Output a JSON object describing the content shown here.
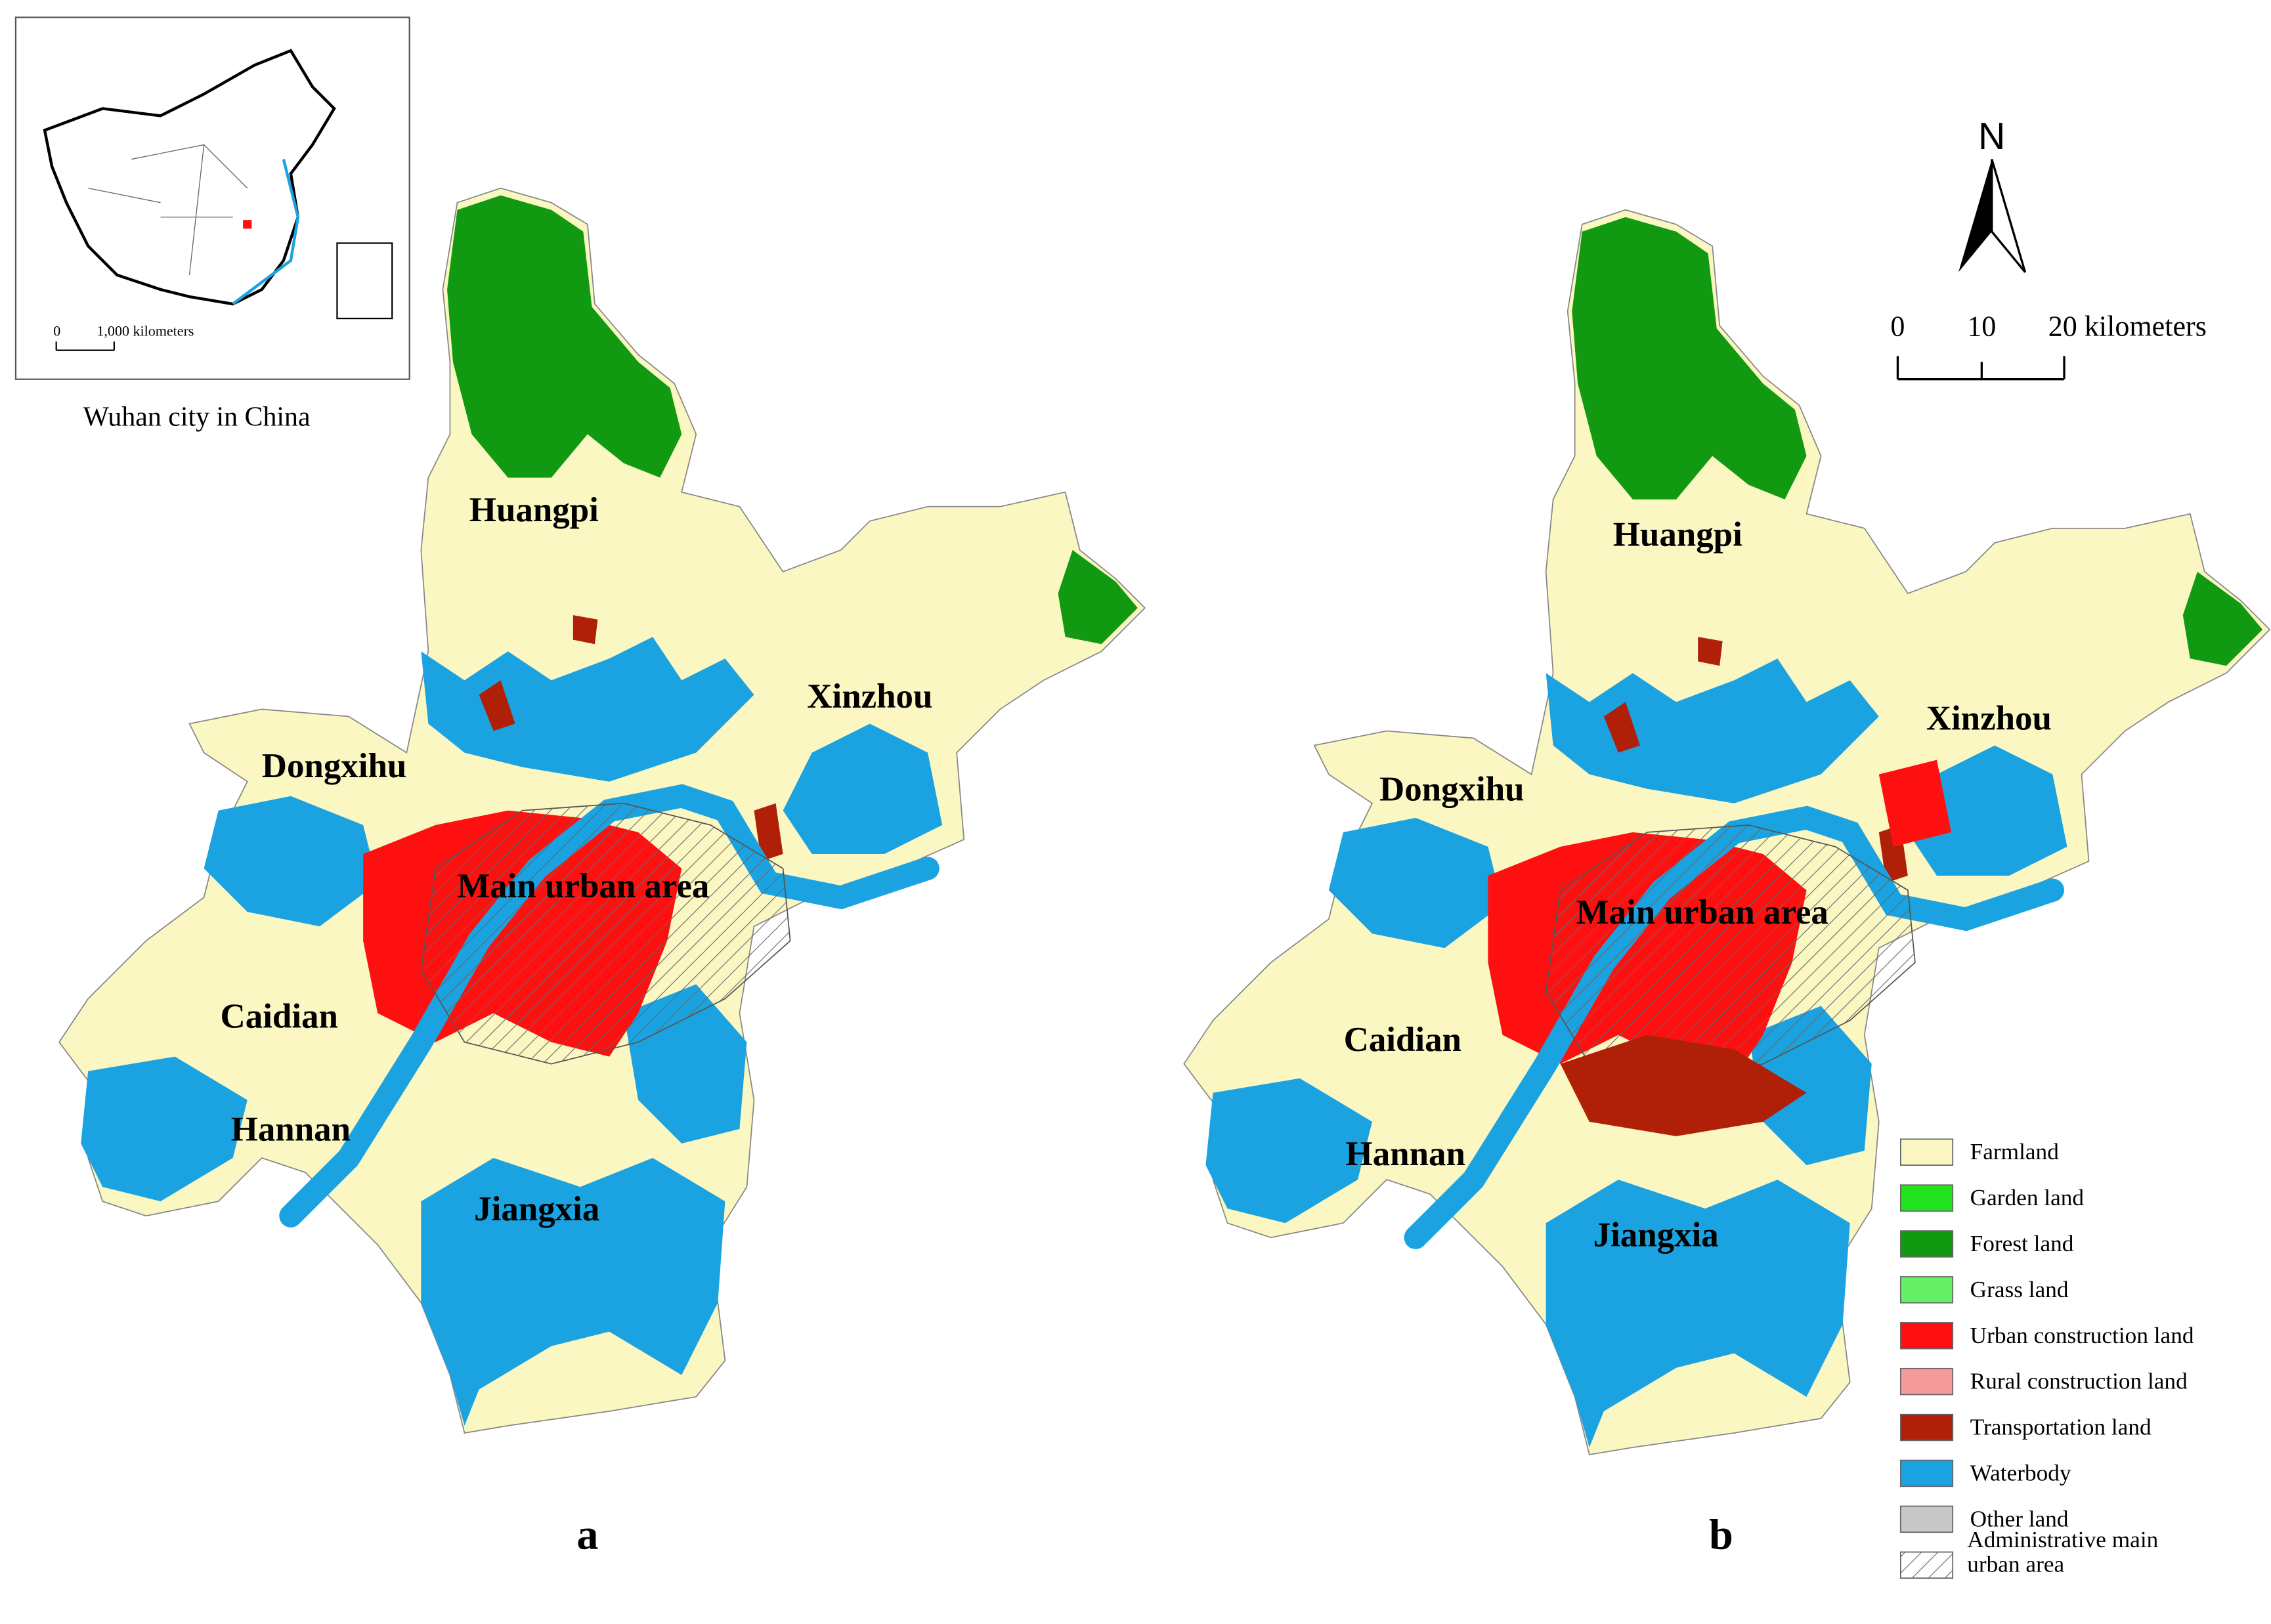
{
  "inset": {
    "scale_labels": [
      "0",
      "1,000 kilometers"
    ],
    "caption": "Wuhan city in China"
  },
  "maps": [
    {
      "label": "a",
      "districts": [
        "Huangpi",
        "Xinzhou",
        "Dongxihu",
        "Main urban area",
        "Caidian",
        "Hannan",
        "Jiangxia"
      ]
    },
    {
      "label": "b",
      "districts": [
        "Huangpi",
        "Xinzhou",
        "Dongxihu",
        "Main urban area",
        "Caidian",
        "Hannan",
        "Jiangxia"
      ]
    }
  ],
  "north_arrow": "N",
  "scale_bar": {
    "labels": [
      "0",
      "10",
      "20 kilometers"
    ]
  },
  "legend": [
    {
      "label": "Farmland",
      "color": "#fbf7c2"
    },
    {
      "label": "Garden land",
      "color": "#22e41e"
    },
    {
      "label": "Forest land",
      "color": "#119a11"
    },
    {
      "label": "Grass land",
      "color": "#66f066"
    },
    {
      "label": "Urban construction land",
      "color": "#ff1010"
    },
    {
      "label": "Rural construction land",
      "color": "#f59a9a"
    },
    {
      "label": "Transportation land",
      "color": "#b02008"
    },
    {
      "label": "Waterbody",
      "color": "#1aa3e0"
    },
    {
      "label": "Other land",
      "color": "#c8c8c8"
    },
    {
      "label": "Administrative main urban area",
      "color": "hatch"
    }
  ]
}
